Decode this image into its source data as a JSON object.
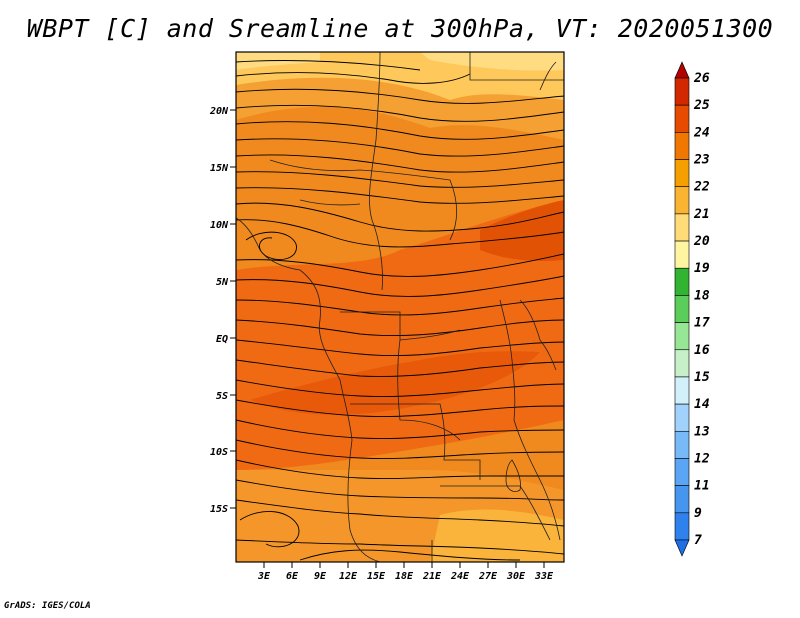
{
  "title": "WBPT [C] and Sreamline at 300hPa, VT: 2020051300",
  "credit": "GrADS: IGES/COLA",
  "map": {
    "lon_labels": [
      "3E",
      "6E",
      "9E",
      "12E",
      "15E",
      "18E",
      "21E",
      "24E",
      "27E",
      "30E",
      "33E"
    ],
    "lat_labels": [
      "20N",
      "15N",
      "10N",
      "5N",
      "EQ",
      "5S",
      "10S",
      "15S"
    ],
    "field": "wet-bulb potential temperature",
    "overlay": "streamlines"
  },
  "colorbar": {
    "labels": [
      "7",
      "9",
      "11",
      "12",
      "13",
      "14",
      "15",
      "16",
      "17",
      "18",
      "19",
      "20",
      "21",
      "22",
      "23",
      "24",
      "25",
      "26"
    ],
    "colors": [
      "#1e6ee6",
      "#2f82ee",
      "#4696f0",
      "#5aa5f5",
      "#78b9f8",
      "#a0d2fb",
      "#d2f0fa",
      "#c8f0c8",
      "#96e696",
      "#5acd5a",
      "#32b432",
      "#fff5a0",
      "#ffdc78",
      "#fab432",
      "#f5a000",
      "#f07800",
      "#e64b00",
      "#d22800",
      "#b40000"
    ]
  }
}
